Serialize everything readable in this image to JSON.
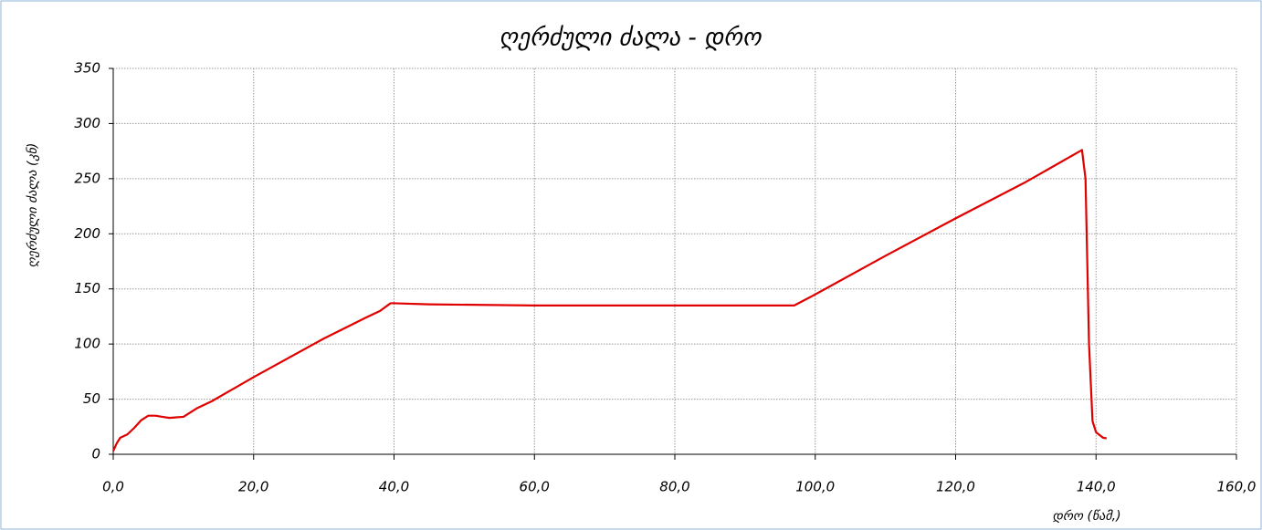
{
  "chart_data": {
    "type": "line",
    "title": "ღერძული ძალა - დრო",
    "xlabel": "დრო (წამ,)",
    "ylabel": "ღერძული ძალა (კნ)",
    "x": [
      0,
      0.5,
      1,
      2,
      3,
      4,
      5,
      6,
      7,
      8,
      9,
      10,
      11,
      12,
      14,
      20,
      30,
      36,
      38,
      39.5,
      40,
      45,
      60,
      80,
      97,
      100,
      110,
      120,
      130,
      138,
      138.5,
      139,
      139.5,
      140,
      141,
      141.5
    ],
    "series": [
      {
        "color": "#e00000",
        "values": [
          3,
          10,
          15,
          18,
          24,
          31,
          35,
          35,
          34,
          33,
          33.5,
          34,
          38,
          42,
          48,
          70,
          105,
          124,
          130,
          137,
          137,
          136,
          135,
          135,
          135,
          145,
          180,
          214,
          247,
          276,
          250,
          100,
          30,
          20,
          15,
          14.5
        ]
      }
    ],
    "xlim": [
      0,
      160
    ],
    "ylim": [
      0,
      350
    ],
    "xticks": [
      {
        "value": 0,
        "label": "0,0"
      },
      {
        "value": 20,
        "label": "20,0"
      },
      {
        "value": 40,
        "label": "40,0"
      },
      {
        "value": 60,
        "label": "60,0"
      },
      {
        "value": 80,
        "label": "80,0"
      },
      {
        "value": 100,
        "label": "100,0"
      },
      {
        "value": 120,
        "label": "120,0"
      },
      {
        "value": 140,
        "label": "140,0"
      },
      {
        "value": 160,
        "label": "160,0"
      }
    ],
    "yticks": [
      0,
      50,
      100,
      150,
      200,
      250,
      300,
      350
    ],
    "grid": true
  }
}
